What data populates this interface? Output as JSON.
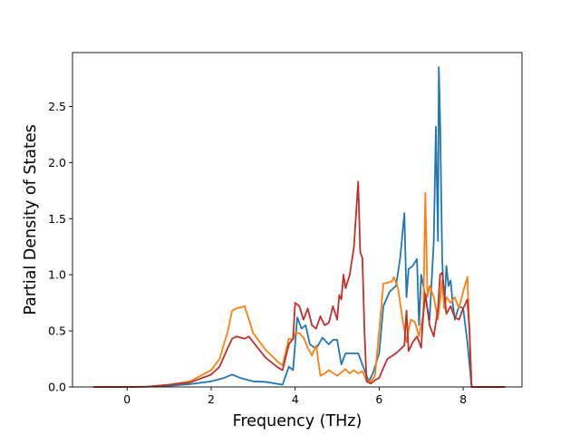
{
  "chart_data": {
    "type": "line",
    "title": "",
    "xlabel": "Frequency (THz)",
    "ylabel": "Partial Density of States",
    "xlim": [
      -1.3,
      9.4
    ],
    "ylim": [
      0,
      2.98
    ],
    "xticks": [
      0,
      2,
      4,
      6,
      8
    ],
    "xtick_labels": [
      "0",
      "2",
      "4",
      "6",
      "8"
    ],
    "yticks": [
      0,
      0.5,
      1.0,
      1.5,
      2.0,
      2.5
    ],
    "ytick_labels": [
      "0.0",
      "0.5",
      "1.0",
      "1.5",
      "2.0",
      "2.5"
    ],
    "grid": false,
    "series": [
      {
        "color": "#1f77b4",
        "x": [
          -0.8,
          0.0,
          0.5,
          1.0,
          1.5,
          2.0,
          2.3,
          2.5,
          2.7,
          3.0,
          3.3,
          3.7,
          3.85,
          3.95,
          4.05,
          4.15,
          4.25,
          4.35,
          4.5,
          4.65,
          4.8,
          4.9,
          5.0,
          5.1,
          5.2,
          5.3,
          5.5,
          5.6,
          5.65,
          5.75,
          5.85,
          6.0,
          6.1,
          6.25,
          6.4,
          6.5,
          6.6,
          6.65,
          6.7,
          6.8,
          6.9,
          6.95,
          7.0,
          7.1,
          7.2,
          7.3,
          7.35,
          7.4,
          7.42,
          7.45,
          7.5,
          7.55,
          7.6,
          7.65,
          7.7,
          7.75,
          7.8,
          7.9,
          8.0,
          8.1,
          8.15,
          8.2,
          8.5,
          9.0
        ],
        "y": [
          0.0,
          0.0,
          0.002,
          0.01,
          0.025,
          0.05,
          0.08,
          0.11,
          0.08,
          0.05,
          0.045,
          0.02,
          0.18,
          0.15,
          0.62,
          0.52,
          0.55,
          0.38,
          0.34,
          0.44,
          0.38,
          0.42,
          0.42,
          0.2,
          0.3,
          0.3,
          0.3,
          0.2,
          0.15,
          0.05,
          0.12,
          0.3,
          0.72,
          0.85,
          0.9,
          1.15,
          1.55,
          0.8,
          1.05,
          1.08,
          1.14,
          0.55,
          1.0,
          0.8,
          0.6,
          1.3,
          2.32,
          1.3,
          2.85,
          2.4,
          1.15,
          0.7,
          1.08,
          0.9,
          0.95,
          0.75,
          0.6,
          0.72,
          0.7,
          0.4,
          0.2,
          0.0,
          0.0,
          0.0
        ]
      },
      {
        "color": "#ff7f0e",
        "x": [
          -0.8,
          0.0,
          0.5,
          1.0,
          1.5,
          2.0,
          2.2,
          2.4,
          2.5,
          2.6,
          2.8,
          2.9,
          3.0,
          3.3,
          3.6,
          3.7,
          3.85,
          3.95,
          4.0,
          4.1,
          4.2,
          4.3,
          4.4,
          4.5,
          4.6,
          4.7,
          4.8,
          5.0,
          5.2,
          5.3,
          5.4,
          5.5,
          5.6,
          5.7,
          5.8,
          5.9,
          6.0,
          6.1,
          6.2,
          6.3,
          6.35,
          6.45,
          6.55,
          6.65,
          6.75,
          6.85,
          6.95,
          7.05,
          7.1,
          7.15,
          7.2,
          7.3,
          7.4,
          7.5,
          7.55,
          7.6,
          7.7,
          7.8,
          7.9,
          8.0,
          8.1,
          8.15,
          8.2,
          8.5,
          9.0
        ],
        "y": [
          0.0,
          0.0,
          0.003,
          0.02,
          0.05,
          0.15,
          0.25,
          0.5,
          0.68,
          0.7,
          0.72,
          0.6,
          0.48,
          0.33,
          0.22,
          0.19,
          0.43,
          0.42,
          0.48,
          0.48,
          0.44,
          0.35,
          0.28,
          0.37,
          0.1,
          0.12,
          0.15,
          0.1,
          0.16,
          0.12,
          0.15,
          0.12,
          0.14,
          0.06,
          0.05,
          0.1,
          0.5,
          0.92,
          0.93,
          0.94,
          0.98,
          0.88,
          0.62,
          0.4,
          0.6,
          0.58,
          0.45,
          0.65,
          1.73,
          0.8,
          0.9,
          0.8,
          0.6,
          0.95,
          0.7,
          0.8,
          0.75,
          0.8,
          0.7,
          0.85,
          0.98,
          0.5,
          0.0,
          0.0,
          0.0
        ]
      },
      {
        "color": "#c0302b",
        "x": [
          -0.8,
          0.0,
          0.5,
          1.0,
          1.5,
          2.0,
          2.2,
          2.4,
          2.5,
          2.6,
          2.8,
          2.9,
          3.0,
          3.3,
          3.6,
          3.7,
          3.85,
          3.95,
          4.0,
          4.1,
          4.2,
          4.3,
          4.4,
          4.5,
          4.6,
          4.7,
          4.8,
          4.9,
          5.0,
          5.05,
          5.1,
          5.15,
          5.2,
          5.3,
          5.4,
          5.5,
          5.55,
          5.6,
          5.65,
          5.7,
          5.8,
          5.9,
          6.0,
          6.1,
          6.2,
          6.4,
          6.6,
          6.65,
          6.7,
          6.8,
          6.9,
          7.0,
          7.05,
          7.1,
          7.2,
          7.3,
          7.4,
          7.45,
          7.5,
          7.6,
          7.7,
          7.8,
          7.9,
          8.0,
          8.1,
          8.15,
          8.2,
          8.5,
          9.0
        ],
        "y": [
          0.0,
          0.0,
          0.003,
          0.02,
          0.04,
          0.11,
          0.18,
          0.35,
          0.43,
          0.45,
          0.43,
          0.45,
          0.4,
          0.26,
          0.17,
          0.15,
          0.38,
          0.43,
          0.75,
          0.72,
          0.6,
          0.7,
          0.55,
          0.52,
          0.63,
          0.55,
          0.57,
          0.72,
          0.6,
          0.82,
          0.78,
          1.0,
          0.88,
          1.0,
          1.25,
          1.83,
          1.2,
          1.15,
          0.5,
          0.05,
          0.03,
          0.06,
          0.08,
          0.17,
          0.25,
          0.3,
          0.37,
          0.68,
          0.32,
          0.4,
          0.45,
          0.35,
          0.65,
          0.83,
          0.55,
          0.45,
          0.7,
          1.0,
          1.02,
          0.65,
          0.72,
          0.62,
          0.6,
          0.7,
          0.78,
          0.5,
          0.0,
          0.0,
          0.0
        ]
      }
    ]
  }
}
